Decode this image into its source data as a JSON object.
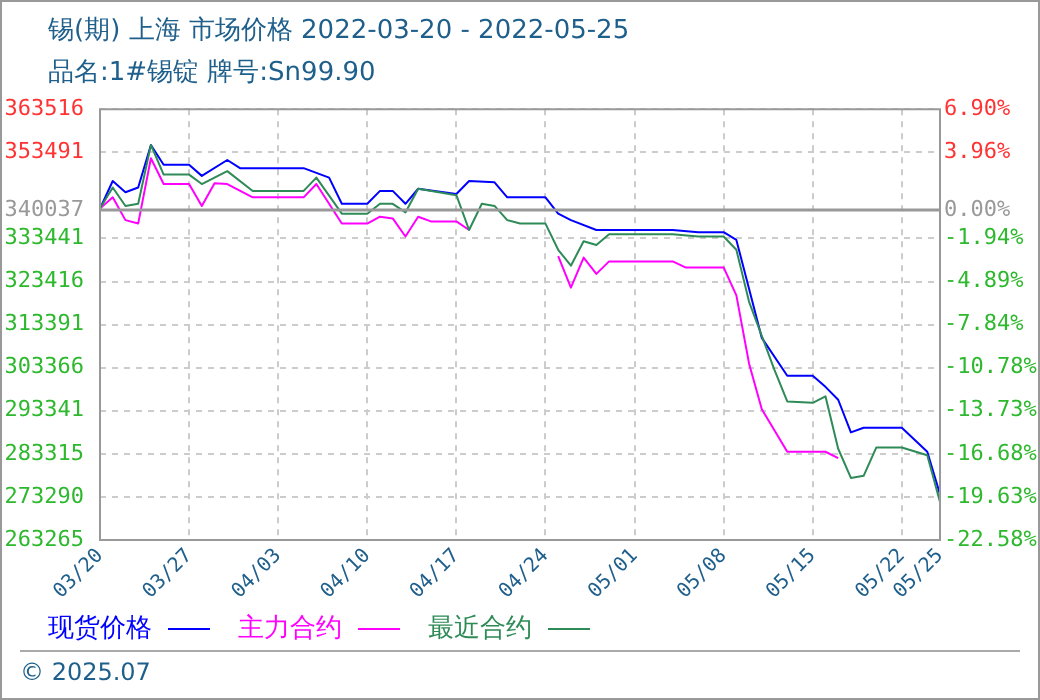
{
  "chart_data": {
    "type": "line",
    "title": "锡(期) 上海 市场价格 2022-03-20 - 2022-05-25",
    "subtitle": "品名:1#锡锭 牌号:Sn99.90",
    "xlim": [
      "2022-03-20",
      "2022-05-25"
    ],
    "xticks": [
      {
        "value": "2022-03-20",
        "label": "03/20"
      },
      {
        "value": "2022-03-27",
        "label": "03/27"
      },
      {
        "value": "2022-04-03",
        "label": "04/03"
      },
      {
        "value": "2022-04-10",
        "label": "04/10"
      },
      {
        "value": "2022-04-17",
        "label": "04/17"
      },
      {
        "value": "2022-04-24",
        "label": "04/24"
      },
      {
        "value": "2022-05-01",
        "label": "05/01"
      },
      {
        "value": "2022-05-08",
        "label": "05/08"
      },
      {
        "value": "2022-05-15",
        "label": "05/15"
      },
      {
        "value": "2022-05-22",
        "label": "05/22"
      },
      {
        "value": "2022-05-25",
        "label": "05/25"
      }
    ],
    "ylim": [
      263265,
      363516
    ],
    "yticks": [
      263265,
      273290,
      283315,
      293341,
      303366,
      313391,
      323416,
      333441,
      340037,
      353491,
      363516
    ],
    "y2lim": [
      -22.58,
      6.9
    ],
    "y2ticks": [
      {
        "value": -22.58,
        "label": "-22.58%"
      },
      {
        "value": -19.63,
        "label": "-19.63%"
      },
      {
        "value": -16.68,
        "label": "-16.68%"
      },
      {
        "value": -13.73,
        "label": "-13.73%"
      },
      {
        "value": -10.78,
        "label": "-10.78%"
      },
      {
        "value": -7.84,
        "label": "-7.84%"
      },
      {
        "value": -4.89,
        "label": "-4.89%"
      },
      {
        "value": -1.94,
        "label": "-1.94%"
      },
      {
        "value": 0,
        "label": "0.00%"
      },
      {
        "value": 3.96,
        "label": "3.96%"
      },
      {
        "value": 6.9,
        "label": "6.90%"
      }
    ],
    "grid": true,
    "legend": "bottom",
    "ref_lines": [
      {
        "axis": "y",
        "value": 340037,
        "color": "#999999"
      }
    ],
    "annotations": [
      "© 2025.07"
    ],
    "series": [
      {
        "name": "现货价格",
        "color": "#0000ff",
        "x": [
          "2022-03-20",
          "2022-03-21",
          "2022-03-22",
          "2022-03-23",
          "2022-03-24",
          "2022-03-25",
          "2022-03-27",
          "2022-03-28",
          "2022-03-30",
          "2022-03-31",
          "2022-04-05",
          "2022-04-07",
          "2022-04-08",
          "2022-04-10",
          "2022-04-11",
          "2022-04-12",
          "2022-04-13",
          "2022-04-14",
          "2022-04-17",
          "2022-04-18",
          "2022-04-20",
          "2022-04-21",
          "2022-04-24",
          "2022-04-25",
          "2022-04-26",
          "2022-04-28",
          "2022-05-04",
          "2022-05-06",
          "2022-05-08",
          "2022-05-09",
          "2022-05-11",
          "2022-05-13",
          "2022-05-15",
          "2022-05-16",
          "2022-05-17",
          "2022-05-18",
          "2022-05-19",
          "2022-05-22",
          "2022-05-24",
          "2022-05-25"
        ],
        "values": [
          340400,
          346800,
          344200,
          345300,
          355200,
          350600,
          350600,
          348000,
          351700,
          349800,
          349800,
          347600,
          341500,
          341500,
          344500,
          344500,
          341500,
          345000,
          343800,
          346800,
          346500,
          343000,
          343000,
          339200,
          337700,
          335400,
          335400,
          334900,
          334900,
          333100,
          310300,
          301500,
          301500,
          298900,
          295900,
          288300,
          289400,
          289400,
          283800,
          273900
        ]
      },
      {
        "name": "主力合约",
        "color": "#ff00ff",
        "x": [
          "2022-03-20",
          "2022-03-21",
          "2022-03-22",
          "2022-03-23",
          "2022-03-24",
          "2022-03-25",
          "2022-03-27",
          "2022-03-28",
          "2022-03-29",
          "2022-03-30",
          "2022-04-01",
          "2022-04-05",
          "2022-04-06",
          "2022-04-08",
          "2022-04-10",
          "2022-04-11",
          "2022-04-12",
          "2022-04-13",
          "2022-04-14",
          "2022-04-15",
          "2022-04-17",
          "2022-04-18",
          "2022-04-19",
          "2022-04-20",
          "2022-04-21",
          "2022-04-22",
          "2022-04-24",
          "2022-04-25",
          "2022-04-26",
          "2022-04-27",
          "2022-04-28",
          "2022-04-29",
          "2022-05-04",
          "2022-05-05",
          "2022-05-08",
          "2022-05-09",
          "2022-05-10",
          "2022-05-11",
          "2022-05-13",
          "2022-05-16",
          "2022-05-17"
        ],
        "values": [
          340400,
          343000,
          337700,
          336900,
          352100,
          346100,
          346100,
          341000,
          346300,
          346100,
          343000,
          343000,
          346100,
          336900,
          336900,
          338500,
          338100,
          333900,
          338500,
          337400,
          337400,
          335400,
          null,
          null,
          null,
          null,
          null,
          329300,
          322000,
          329000,
          325200,
          328100,
          328100,
          326700,
          326700,
          320200,
          304300,
          293700,
          283800,
          283800,
          282300
        ]
      },
      {
        "name": "最近合约",
        "color": "#2e8b57",
        "x": [
          "2022-03-20",
          "2022-03-21",
          "2022-03-22",
          "2022-03-23",
          "2022-03-24",
          "2022-03-25",
          "2022-03-27",
          "2022-03-28",
          "2022-03-30",
          "2022-04-01",
          "2022-04-05",
          "2022-04-06",
          "2022-04-08",
          "2022-04-10",
          "2022-04-11",
          "2022-04-12",
          "2022-04-13",
          "2022-04-14",
          "2022-04-17",
          "2022-04-18",
          "2022-04-19",
          "2022-04-20",
          "2022-04-21",
          "2022-04-22",
          "2022-04-24",
          "2022-04-25",
          "2022-04-26",
          "2022-04-27",
          "2022-04-28",
          "2022-04-29",
          "2022-05-04",
          "2022-05-06",
          "2022-05-08",
          "2022-05-09",
          "2022-05-10",
          "2022-05-12",
          "2022-05-13",
          "2022-05-15",
          "2022-05-16",
          "2022-05-17",
          "2022-05-18",
          "2022-05-19",
          "2022-05-20",
          "2022-05-22",
          "2022-05-24",
          "2022-05-25"
        ],
        "values": [
          340400,
          345300,
          341000,
          341500,
          355200,
          348300,
          348300,
          346100,
          349100,
          344500,
          344500,
          347600,
          339200,
          339200,
          341500,
          341500,
          339500,
          345000,
          343500,
          335400,
          341500,
          341000,
          337700,
          336900,
          336900,
          330800,
          327100,
          332800,
          331900,
          334400,
          334400,
          333900,
          333900,
          330800,
          318700,
          302800,
          295500,
          295200,
          296700,
          284500,
          277700,
          278200,
          284800,
          284800,
          283000,
          272100
        ]
      }
    ]
  }
}
